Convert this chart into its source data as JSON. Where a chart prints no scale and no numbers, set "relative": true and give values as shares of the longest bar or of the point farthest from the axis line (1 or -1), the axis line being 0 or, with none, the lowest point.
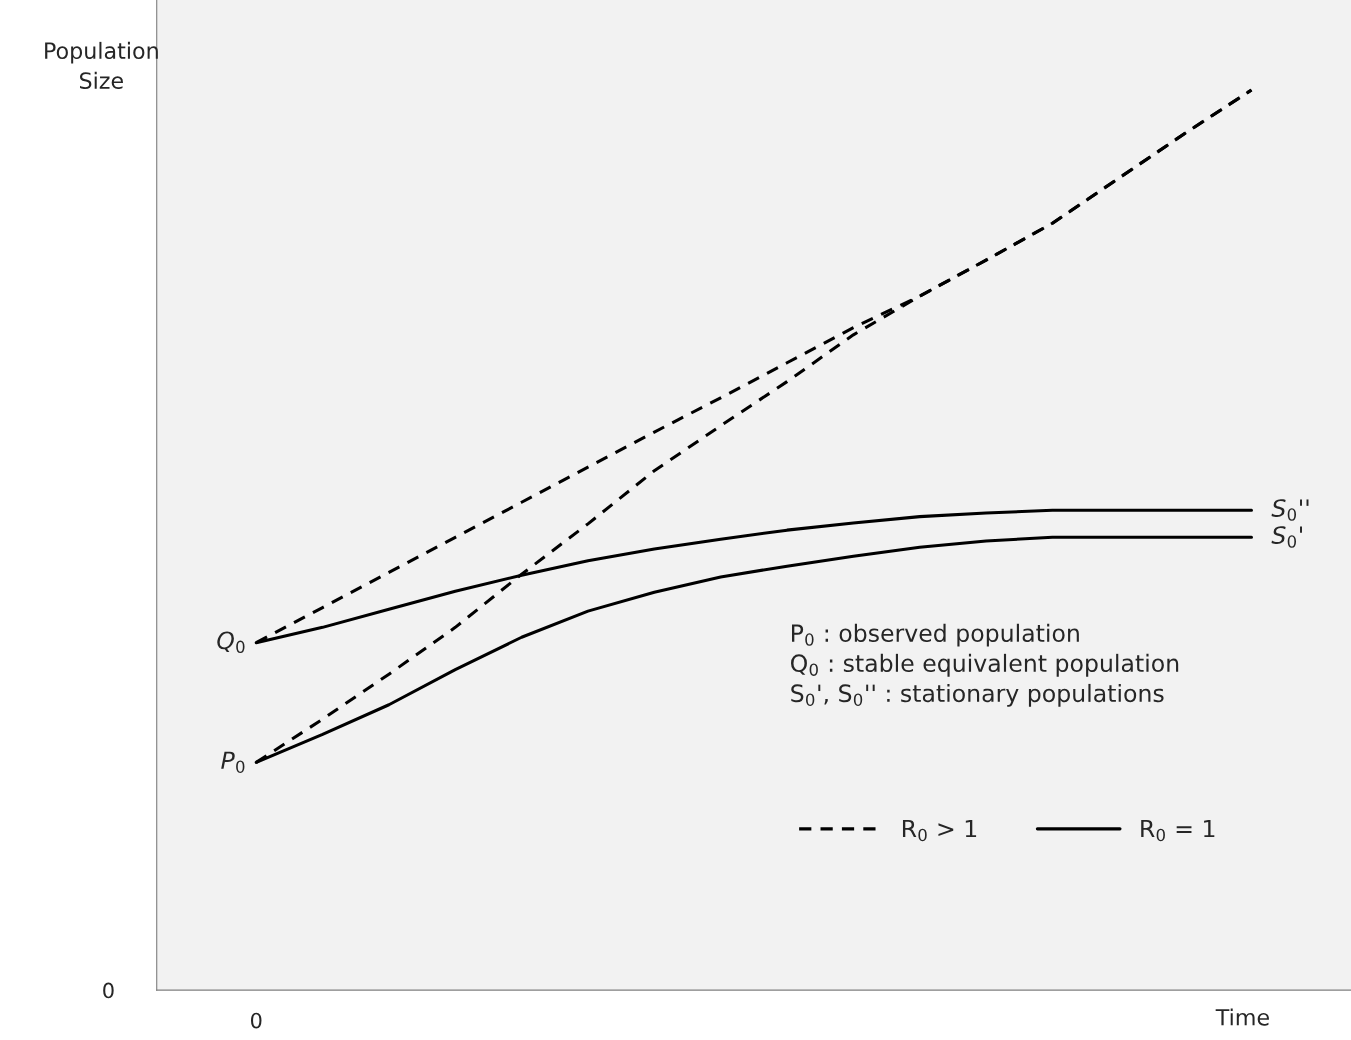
{
  "chart_data": {
    "type": "line",
    "relative": true,
    "xlabel": "Time",
    "ylabel": "Population\nSize",
    "categories": [
      null,
      null,
      null,
      null,
      null,
      null,
      null,
      null,
      null,
      null,
      null,
      null,
      null,
      null,
      null,
      null
    ],
    "series": [
      {
        "name": "R$_{0}$ > 1",
        "color": "#000000",
        "line_style": "dashed",
        "values": [
          0.386,
          0.425,
          0.464,
          0.503,
          0.542,
          0.581,
          0.62,
          0.658,
          0.697,
          0.736,
          0.771,
          0.811,
          0.852,
          0.902,
          0.952,
          1
        ]
      },
      {
        "color": "#000000",
        "line_style": "dashed",
        "values": [
          0.253,
          0.301,
          0.351,
          0.403,
          0.462,
          0.518,
          0.577,
          0.627,
          0.676,
          0.728,
          0.771,
          0.811,
          0.852,
          0.902,
          0.952,
          1
        ]
      },
      {
        "name": "R$_{0}$ = 1",
        "color": "#000000",
        "line_style": "solid",
        "values": [
          0.386,
          0.403,
          0.423,
          0.443,
          0.461,
          0.477,
          0.49,
          0.501,
          0.511,
          0.519,
          0.526,
          0.53,
          0.533,
          0.533,
          0.533,
          0.533
        ]
      },
      {
        "color": "#000000",
        "line_style": "solid",
        "values": [
          0.253,
          0.284,
          0.317,
          0.356,
          0.392,
          0.421,
          0.442,
          0.459,
          0.471,
          0.482,
          0.492,
          0.499,
          0.503,
          0.503,
          0.503,
          0.503
        ]
      }
    ],
    "annotations": [
      "0",
      "0",
      "P$_{0}$ : observed population\nQ$_{0}$ : stable equivalent population\nS$_{0}$', S$_{0}$'' : stationary populations",
      "Q$_{0}$",
      "P$_{0}$",
      "S$_{0}$''",
      "S$_{0}$'"
    ],
    "legend": "bottom right",
    "grid": false,
    "marker": "none"
  }
}
